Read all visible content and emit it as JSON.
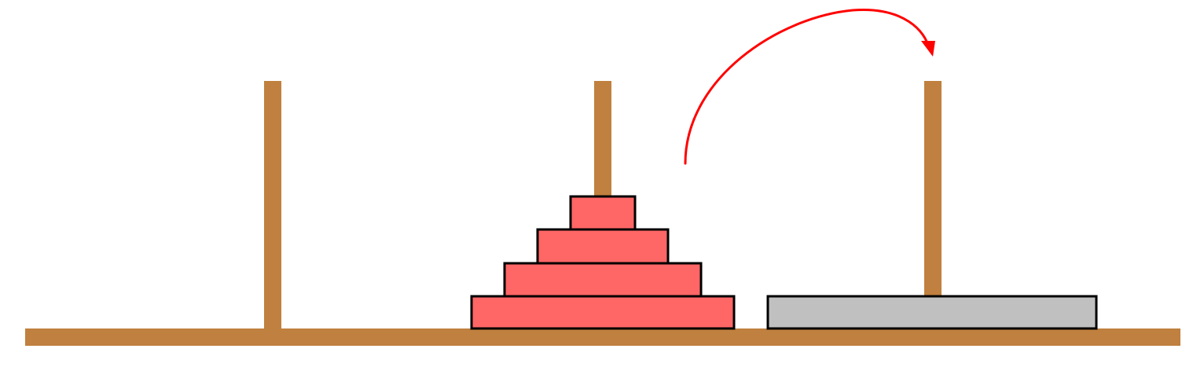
{
  "game": {
    "type": "tower-of-hanoi",
    "colors": {
      "wood": "#c0803f",
      "disk_red": "#ff6666",
      "disk_gray": "#c0c0c0",
      "disk_outline": "#000000",
      "move_arrow": "#ff0000"
    },
    "pegs": [
      {
        "id": "left",
        "disks": []
      },
      {
        "id": "middle",
        "disks": [
          {
            "size": 8,
            "color": "red"
          },
          {
            "size": 6,
            "color": "red"
          },
          {
            "size": 4,
            "color": "red"
          },
          {
            "size": 2,
            "color": "red"
          }
        ]
      },
      {
        "id": "right",
        "disks": [
          {
            "size": 10,
            "color": "gray"
          }
        ]
      }
    ],
    "move_indicator": {
      "from": "middle",
      "to": "right",
      "icon": "curved-arrow-icon"
    }
  }
}
